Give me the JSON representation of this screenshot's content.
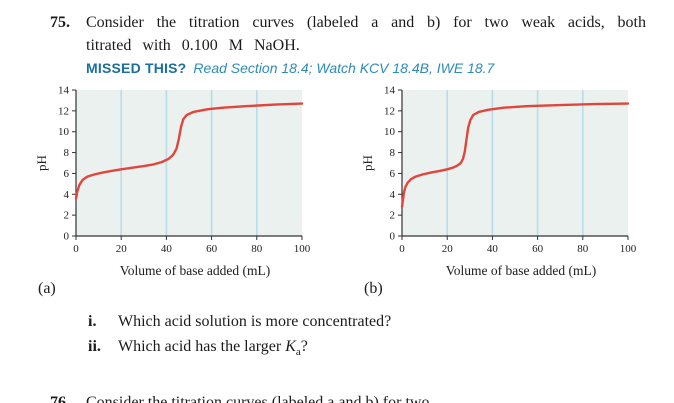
{
  "problem": {
    "number": "75.",
    "text": "Consider the titration curves (labeled a and b) for two weak acids, both titrated with 0.100 M NaOH.",
    "missed_label": "MISSED THIS?",
    "missed_text": "Read Section 18.4; Watch KCV 18.4B, IWE 18.7"
  },
  "colors": {
    "curve_red": "#e2453c",
    "grid_blue": "#b8dce9",
    "plot_bg": "#eaf1ee",
    "axis": "#333333",
    "accent_blue": "#1a6f9e",
    "accent_blue_italic": "#2e8bb8"
  },
  "chart_data": [
    {
      "id": "a",
      "type": "line",
      "label": "(a)",
      "xlabel": "Volume of base added (mL)",
      "ylabel": "pH",
      "xlim": [
        0,
        100
      ],
      "ylim": [
        0,
        14
      ],
      "xticks": [
        0,
        20,
        40,
        60,
        80,
        100
      ],
      "yticks": [
        0,
        2,
        4,
        6,
        8,
        10,
        12,
        14
      ],
      "gridlines_x": [
        20,
        40,
        60,
        80
      ],
      "grid": "vertical-only",
      "legend": "none",
      "series": [
        {
          "name": "weak acid a titration curve",
          "points": [
            [
              0,
              3.6
            ],
            [
              0.5,
              4.2
            ],
            [
              1.5,
              4.9
            ],
            [
              3,
              5.4
            ],
            [
              5,
              5.7
            ],
            [
              8,
              5.9
            ],
            [
              12,
              6.1
            ],
            [
              16,
              6.25
            ],
            [
              20,
              6.4
            ],
            [
              25,
              6.55
            ],
            [
              30,
              6.7
            ],
            [
              34,
              6.85
            ],
            [
              38,
              7.1
            ],
            [
              41,
              7.4
            ],
            [
              43,
              7.8
            ],
            [
              44.5,
              8.4
            ],
            [
              45.5,
              9.3
            ],
            [
              46.5,
              10.5
            ],
            [
              47.5,
              11.2
            ],
            [
              49,
              11.6
            ],
            [
              52,
              11.9
            ],
            [
              58,
              12.15
            ],
            [
              65,
              12.3
            ],
            [
              75,
              12.45
            ],
            [
              88,
              12.6
            ],
            [
              100,
              12.7
            ]
          ]
        }
      ]
    },
    {
      "id": "b",
      "type": "line",
      "label": "(b)",
      "xlabel": "Volume of base added (mL)",
      "ylabel": "pH",
      "xlim": [
        0,
        100
      ],
      "ylim": [
        0,
        14
      ],
      "xticks": [
        0,
        20,
        40,
        60,
        80,
        100
      ],
      "yticks": [
        0,
        2,
        4,
        6,
        8,
        10,
        12,
        14
      ],
      "gridlines_x": [
        20,
        40,
        60,
        80
      ],
      "grid": "vertical-only",
      "legend": "none",
      "series": [
        {
          "name": "weak acid b titration curve",
          "points": [
            [
              0,
              2.8
            ],
            [
              0.3,
              3.3
            ],
            [
              0.8,
              4.1
            ],
            [
              1.5,
              4.7
            ],
            [
              2.5,
              5.1
            ],
            [
              4,
              5.45
            ],
            [
              6,
              5.7
            ],
            [
              9,
              5.9
            ],
            [
              13,
              6.1
            ],
            [
              17,
              6.25
            ],
            [
              20,
              6.4
            ],
            [
              22.5,
              6.55
            ],
            [
              24.5,
              6.75
            ],
            [
              26,
              7.0
            ],
            [
              27,
              7.4
            ],
            [
              27.8,
              8.1
            ],
            [
              28.5,
              9.2
            ],
            [
              29.3,
              10.4
            ],
            [
              30.2,
              11.1
            ],
            [
              31.5,
              11.6
            ],
            [
              34,
              11.9
            ],
            [
              38,
              12.1
            ],
            [
              45,
              12.3
            ],
            [
              55,
              12.45
            ],
            [
              70,
              12.55
            ],
            [
              85,
              12.65
            ],
            [
              100,
              12.7
            ]
          ]
        }
      ]
    }
  ],
  "subquestions": [
    {
      "number": "i.",
      "text": "Which acid solution is more concentrated?"
    },
    {
      "number": "ii.",
      "text_before": "Which acid has the larger ",
      "symbol": "K",
      "symbol_sub": "a",
      "text_after": "?"
    }
  ],
  "next_problem_partial": {
    "number": "76.",
    "text": "Consider the titration curves (labeled a and b) for two..."
  }
}
